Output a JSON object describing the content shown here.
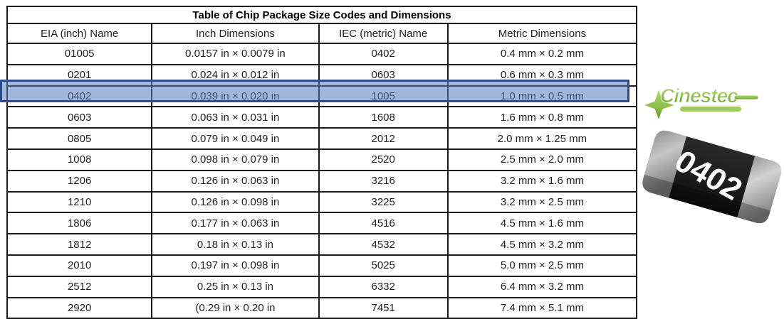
{
  "table": {
    "title": "Table of Chip Package Size Codes and Dimensions",
    "columns": [
      "EIA (inch) Name",
      "Inch Dimensions",
      "IEC (metric) Name",
      "Metric Dimensions"
    ],
    "rows": [
      {
        "eia": "01005",
        "inch": "0.0157 in × 0.0079 in",
        "iec": "0402",
        "metric": "0.4 mm × 0.2 mm"
      },
      {
        "eia": "0201",
        "inch": "0.024 in × 0.012 in",
        "iec": "0603",
        "metric": "0.6 mm × 0.3 mm"
      },
      {
        "eia": "0402",
        "inch": "0.039 in × 0.020 in",
        "iec": "1005",
        "metric": "1.0 mm × 0.5 mm"
      },
      {
        "eia": "0603",
        "inch": "0.063 in × 0.031 in",
        "iec": "1608",
        "metric": "1.6 mm × 0.8 mm"
      },
      {
        "eia": "0805",
        "inch": "0.079 in × 0.049 in",
        "iec": "2012",
        "metric": "2.0 mm × 1.25 mm"
      },
      {
        "eia": "1008",
        "inch": "0.098 in × 0.079 in",
        "iec": "2520",
        "metric": "2.5 mm × 2.0 mm"
      },
      {
        "eia": "1206",
        "inch": "0.126 in × 0.063 in",
        "iec": "3216",
        "metric": "3.2 mm × 1.6 mm"
      },
      {
        "eia": "1210",
        "inch": "0.126 in × 0.098 in",
        "iec": "3225",
        "metric": "3.2 mm × 2.5 mm"
      },
      {
        "eia": "1806",
        "inch": "0.177 in × 0.063 in",
        "iec": "4516",
        "metric": "4.5 mm × 1.6 mm"
      },
      {
        "eia": "1812",
        "inch": "0.18 in × 0.13 in",
        "iec": "4532",
        "metric": "4.5 mm × 3.2 mm"
      },
      {
        "eia": "2010",
        "inch": "0.197 in × 0.098 in",
        "iec": "5025",
        "metric": "5.0 mm × 2.5 mm"
      },
      {
        "eia": "2512",
        "inch": "0.25 in × 0.13 in",
        "iec": "6332",
        "metric": "6.4 mm × 3.2 mm"
      },
      {
        "eia": "2920",
        "inch": "(0.29 in × 0.20 in",
        "iec": "7451",
        "metric": "7.4 mm × 5.1 mm"
      }
    ],
    "highlighted_row_index": 2
  },
  "highlight": {
    "fill_color": "#5678bc",
    "border_color": "#2e4b8d"
  },
  "logo": {
    "text": "Cinestec",
    "color": "#76b043"
  },
  "chip": {
    "label": "0402",
    "body_color": "#1d1d1d",
    "terminal_color": "#b5b5b5"
  }
}
